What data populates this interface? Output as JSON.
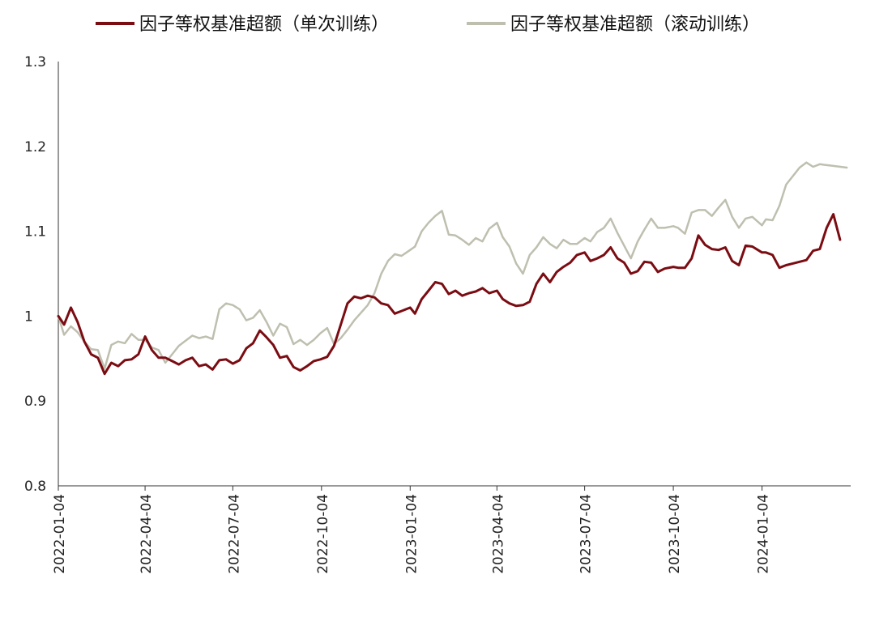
{
  "chart_data": {
    "type": "line",
    "title": "",
    "xlabel": "",
    "ylabel": "",
    "ylim": [
      0.8,
      1.3
    ],
    "y_ticks": [
      "1.3",
      "1.2",
      "1.1",
      "1",
      "0.9",
      "0.8"
    ],
    "x_ticks": [
      "2022-01-04",
      "2022-04-04",
      "2022-07-04",
      "2022-10-04",
      "2023-01-04",
      "2023-04-04",
      "2023-07-04",
      "2023-10-04",
      "2024-01-04"
    ],
    "x_range": [
      "2022-01-04",
      "2024-04-05"
    ],
    "grid": false,
    "legend_position": "top-center",
    "series": [
      {
        "name": "因子等权基准超额（单次训练）",
        "color": "#7a0c12",
        "points": [
          [
            "2022-01-04",
            1.0
          ],
          [
            "2022-01-10",
            0.99
          ],
          [
            "2022-01-17",
            1.01
          ],
          [
            "2022-01-24",
            0.993
          ],
          [
            "2022-01-31",
            0.97
          ],
          [
            "2022-02-07",
            0.955
          ],
          [
            "2022-02-14",
            0.951
          ],
          [
            "2022-02-21",
            0.932
          ],
          [
            "2022-02-28",
            0.945
          ],
          [
            "2022-03-07",
            0.941
          ],
          [
            "2022-03-14",
            0.948
          ],
          [
            "2022-03-21",
            0.949
          ],
          [
            "2022-03-28",
            0.955
          ],
          [
            "2022-04-04",
            0.976
          ],
          [
            "2022-04-11",
            0.96
          ],
          [
            "2022-04-18",
            0.951
          ],
          [
            "2022-04-25",
            0.951
          ],
          [
            "2022-05-02",
            0.947
          ],
          [
            "2022-05-09",
            0.943
          ],
          [
            "2022-05-16",
            0.948
          ],
          [
            "2022-05-23",
            0.951
          ],
          [
            "2022-05-30",
            0.941
          ],
          [
            "2022-06-06",
            0.943
          ],
          [
            "2022-06-13",
            0.937
          ],
          [
            "2022-06-20",
            0.948
          ],
          [
            "2022-06-27",
            0.949
          ],
          [
            "2022-07-04",
            0.944
          ],
          [
            "2022-07-11",
            0.948
          ],
          [
            "2022-07-18",
            0.962
          ],
          [
            "2022-07-25",
            0.968
          ],
          [
            "2022-08-01",
            0.983
          ],
          [
            "2022-08-08",
            0.975
          ],
          [
            "2022-08-15",
            0.966
          ],
          [
            "2022-08-22",
            0.951
          ],
          [
            "2022-08-29",
            0.953
          ],
          [
            "2022-09-05",
            0.94
          ],
          [
            "2022-09-12",
            0.936
          ],
          [
            "2022-09-19",
            0.941
          ],
          [
            "2022-09-26",
            0.947
          ],
          [
            "2022-10-03",
            0.949
          ],
          [
            "2022-10-10",
            0.952
          ],
          [
            "2022-10-17",
            0.965
          ],
          [
            "2022-10-24",
            0.99
          ],
          [
            "2022-10-31",
            1.015
          ],
          [
            "2022-11-07",
            1.023
          ],
          [
            "2022-11-14",
            1.021
          ],
          [
            "2022-11-21",
            1.024
          ],
          [
            "2022-11-28",
            1.022
          ],
          [
            "2022-12-05",
            1.015
          ],
          [
            "2022-12-12",
            1.013
          ],
          [
            "2022-12-19",
            1.003
          ],
          [
            "2022-12-26",
            1.006
          ],
          [
            "2023-01-04",
            1.01
          ],
          [
            "2023-01-09",
            1.003
          ],
          [
            "2023-01-16",
            1.02
          ],
          [
            "2023-01-23",
            1.03
          ],
          [
            "2023-01-30",
            1.04
          ],
          [
            "2023-02-06",
            1.038
          ],
          [
            "2023-02-13",
            1.026
          ],
          [
            "2023-02-20",
            1.03
          ],
          [
            "2023-02-27",
            1.024
          ],
          [
            "2023-03-06",
            1.027
          ],
          [
            "2023-03-13",
            1.029
          ],
          [
            "2023-03-20",
            1.033
          ],
          [
            "2023-03-27",
            1.027
          ],
          [
            "2023-04-04",
            1.03
          ],
          [
            "2023-04-10",
            1.02
          ],
          [
            "2023-04-17",
            1.015
          ],
          [
            "2023-04-24",
            1.012
          ],
          [
            "2023-05-01",
            1.013
          ],
          [
            "2023-05-08",
            1.017
          ],
          [
            "2023-05-15",
            1.038
          ],
          [
            "2023-05-22",
            1.05
          ],
          [
            "2023-05-29",
            1.04
          ],
          [
            "2023-06-05",
            1.052
          ],
          [
            "2023-06-12",
            1.058
          ],
          [
            "2023-06-19",
            1.063
          ],
          [
            "2023-06-26",
            1.072
          ],
          [
            "2023-07-04",
            1.075
          ],
          [
            "2023-07-10",
            1.065
          ],
          [
            "2023-07-17",
            1.068
          ],
          [
            "2023-07-24",
            1.072
          ],
          [
            "2023-07-31",
            1.081
          ],
          [
            "2023-08-07",
            1.068
          ],
          [
            "2023-08-14",
            1.063
          ],
          [
            "2023-08-21",
            1.05
          ],
          [
            "2023-08-28",
            1.053
          ],
          [
            "2023-09-04",
            1.064
          ],
          [
            "2023-09-11",
            1.063
          ],
          [
            "2023-09-18",
            1.052
          ],
          [
            "2023-09-25",
            1.056
          ],
          [
            "2023-10-04",
            1.058
          ],
          [
            "2023-10-09",
            1.057
          ],
          [
            "2023-10-16",
            1.057
          ],
          [
            "2023-10-23",
            1.068
          ],
          [
            "2023-10-30",
            1.095
          ],
          [
            "2023-11-06",
            1.084
          ],
          [
            "2023-11-13",
            1.079
          ],
          [
            "2023-11-20",
            1.078
          ],
          [
            "2023-11-27",
            1.081
          ],
          [
            "2023-12-04",
            1.065
          ],
          [
            "2023-12-11",
            1.06
          ],
          [
            "2023-12-18",
            1.083
          ],
          [
            "2023-12-25",
            1.082
          ],
          [
            "2024-01-04",
            1.075
          ],
          [
            "2024-01-08",
            1.075
          ],
          [
            "2024-01-15",
            1.072
          ],
          [
            "2024-01-22",
            1.057
          ],
          [
            "2024-01-29",
            1.06
          ],
          [
            "2024-02-05",
            1.062
          ],
          [
            "2024-02-12",
            1.064
          ],
          [
            "2024-02-19",
            1.066
          ],
          [
            "2024-02-26",
            1.077
          ],
          [
            "2024-03-04",
            1.079
          ],
          [
            "2024-03-11",
            1.104
          ],
          [
            "2024-03-18",
            1.12
          ],
          [
            "2024-03-25",
            1.09
          ]
        ]
      },
      {
        "name": "因子等权基准超额（滚动训练）",
        "color": "#bfbfb0",
        "points": [
          [
            "2022-01-04",
            1.0
          ],
          [
            "2022-01-10",
            0.978
          ],
          [
            "2022-01-17",
            0.988
          ],
          [
            "2022-01-24",
            0.981
          ],
          [
            "2022-01-31",
            0.97
          ],
          [
            "2022-02-07",
            0.961
          ],
          [
            "2022-02-14",
            0.96
          ],
          [
            "2022-02-21",
            0.938
          ],
          [
            "2022-02-28",
            0.966
          ],
          [
            "2022-03-07",
            0.97
          ],
          [
            "2022-03-14",
            0.968
          ],
          [
            "2022-03-21",
            0.979
          ],
          [
            "2022-03-28",
            0.972
          ],
          [
            "2022-04-04",
            0.972
          ],
          [
            "2022-04-11",
            0.963
          ],
          [
            "2022-04-18",
            0.96
          ],
          [
            "2022-04-25",
            0.945
          ],
          [
            "2022-05-02",
            0.955
          ],
          [
            "2022-05-09",
            0.965
          ],
          [
            "2022-05-16",
            0.971
          ],
          [
            "2022-05-23",
            0.977
          ],
          [
            "2022-05-30",
            0.974
          ],
          [
            "2022-06-06",
            0.976
          ],
          [
            "2022-06-13",
            0.973
          ],
          [
            "2022-06-20",
            1.008
          ],
          [
            "2022-06-27",
            1.015
          ],
          [
            "2022-07-04",
            1.013
          ],
          [
            "2022-07-11",
            1.008
          ],
          [
            "2022-07-18",
            0.995
          ],
          [
            "2022-07-25",
            0.998
          ],
          [
            "2022-08-01",
            1.007
          ],
          [
            "2022-08-08",
            0.993
          ],
          [
            "2022-08-15",
            0.977
          ],
          [
            "2022-08-22",
            0.991
          ],
          [
            "2022-08-29",
            0.987
          ],
          [
            "2022-09-05",
            0.967
          ],
          [
            "2022-09-12",
            0.972
          ],
          [
            "2022-09-19",
            0.966
          ],
          [
            "2022-09-26",
            0.972
          ],
          [
            "2022-10-03",
            0.98
          ],
          [
            "2022-10-10",
            0.986
          ],
          [
            "2022-10-17",
            0.967
          ],
          [
            "2022-10-24",
            0.974
          ],
          [
            "2022-10-31",
            0.984
          ],
          [
            "2022-11-07",
            0.995
          ],
          [
            "2022-11-14",
            1.004
          ],
          [
            "2022-11-21",
            1.013
          ],
          [
            "2022-11-28",
            1.027
          ],
          [
            "2022-12-05",
            1.05
          ],
          [
            "2022-12-12",
            1.065
          ],
          [
            "2022-12-19",
            1.073
          ],
          [
            "2022-12-26",
            1.071
          ],
          [
            "2023-01-04",
            1.078
          ],
          [
            "2023-01-09",
            1.082
          ],
          [
            "2023-01-16",
            1.1
          ],
          [
            "2023-01-23",
            1.11
          ],
          [
            "2023-01-30",
            1.118
          ],
          [
            "2023-02-06",
            1.124
          ],
          [
            "2023-02-13",
            1.096
          ],
          [
            "2023-02-20",
            1.095
          ],
          [
            "2023-02-27",
            1.09
          ],
          [
            "2023-03-06",
            1.084
          ],
          [
            "2023-03-13",
            1.092
          ],
          [
            "2023-03-20",
            1.088
          ],
          [
            "2023-03-27",
            1.103
          ],
          [
            "2023-04-04",
            1.11
          ],
          [
            "2023-04-10",
            1.093
          ],
          [
            "2023-04-17",
            1.082
          ],
          [
            "2023-04-24",
            1.062
          ],
          [
            "2023-05-01",
            1.05
          ],
          [
            "2023-05-08",
            1.072
          ],
          [
            "2023-05-15",
            1.081
          ],
          [
            "2023-05-22",
            1.093
          ],
          [
            "2023-05-29",
            1.085
          ],
          [
            "2023-06-05",
            1.08
          ],
          [
            "2023-06-12",
            1.09
          ],
          [
            "2023-06-19",
            1.085
          ],
          [
            "2023-06-26",
            1.085
          ],
          [
            "2023-07-04",
            1.092
          ],
          [
            "2023-07-10",
            1.088
          ],
          [
            "2023-07-17",
            1.099
          ],
          [
            "2023-07-24",
            1.104
          ],
          [
            "2023-07-31",
            1.115
          ],
          [
            "2023-08-07",
            1.098
          ],
          [
            "2023-08-14",
            1.083
          ],
          [
            "2023-08-21",
            1.068
          ],
          [
            "2023-08-28",
            1.088
          ],
          [
            "2023-09-04",
            1.102
          ],
          [
            "2023-09-11",
            1.115
          ],
          [
            "2023-09-18",
            1.104
          ],
          [
            "2023-09-25",
            1.104
          ],
          [
            "2023-10-04",
            1.106
          ],
          [
            "2023-10-09",
            1.104
          ],
          [
            "2023-10-16",
            1.097
          ],
          [
            "2023-10-23",
            1.122
          ],
          [
            "2023-10-30",
            1.125
          ],
          [
            "2023-11-06",
            1.125
          ],
          [
            "2023-11-13",
            1.118
          ],
          [
            "2023-11-20",
            1.128
          ],
          [
            "2023-11-27",
            1.137
          ],
          [
            "2023-12-04",
            1.117
          ],
          [
            "2023-12-11",
            1.104
          ],
          [
            "2023-12-18",
            1.115
          ],
          [
            "2023-12-25",
            1.117
          ],
          [
            "2024-01-04",
            1.107
          ],
          [
            "2024-01-08",
            1.114
          ],
          [
            "2024-01-15",
            1.113
          ],
          [
            "2024-01-22",
            1.13
          ],
          [
            "2024-01-29",
            1.155
          ],
          [
            "2024-02-05",
            1.165
          ],
          [
            "2024-02-12",
            1.175
          ],
          [
            "2024-02-19",
            1.181
          ],
          [
            "2024-02-26",
            1.176
          ],
          [
            "2024-03-04",
            1.179
          ],
          [
            "2024-03-11",
            1.178
          ],
          [
            "2024-03-18",
            1.177
          ],
          [
            "2024-04-01",
            1.175
          ]
        ]
      }
    ]
  }
}
